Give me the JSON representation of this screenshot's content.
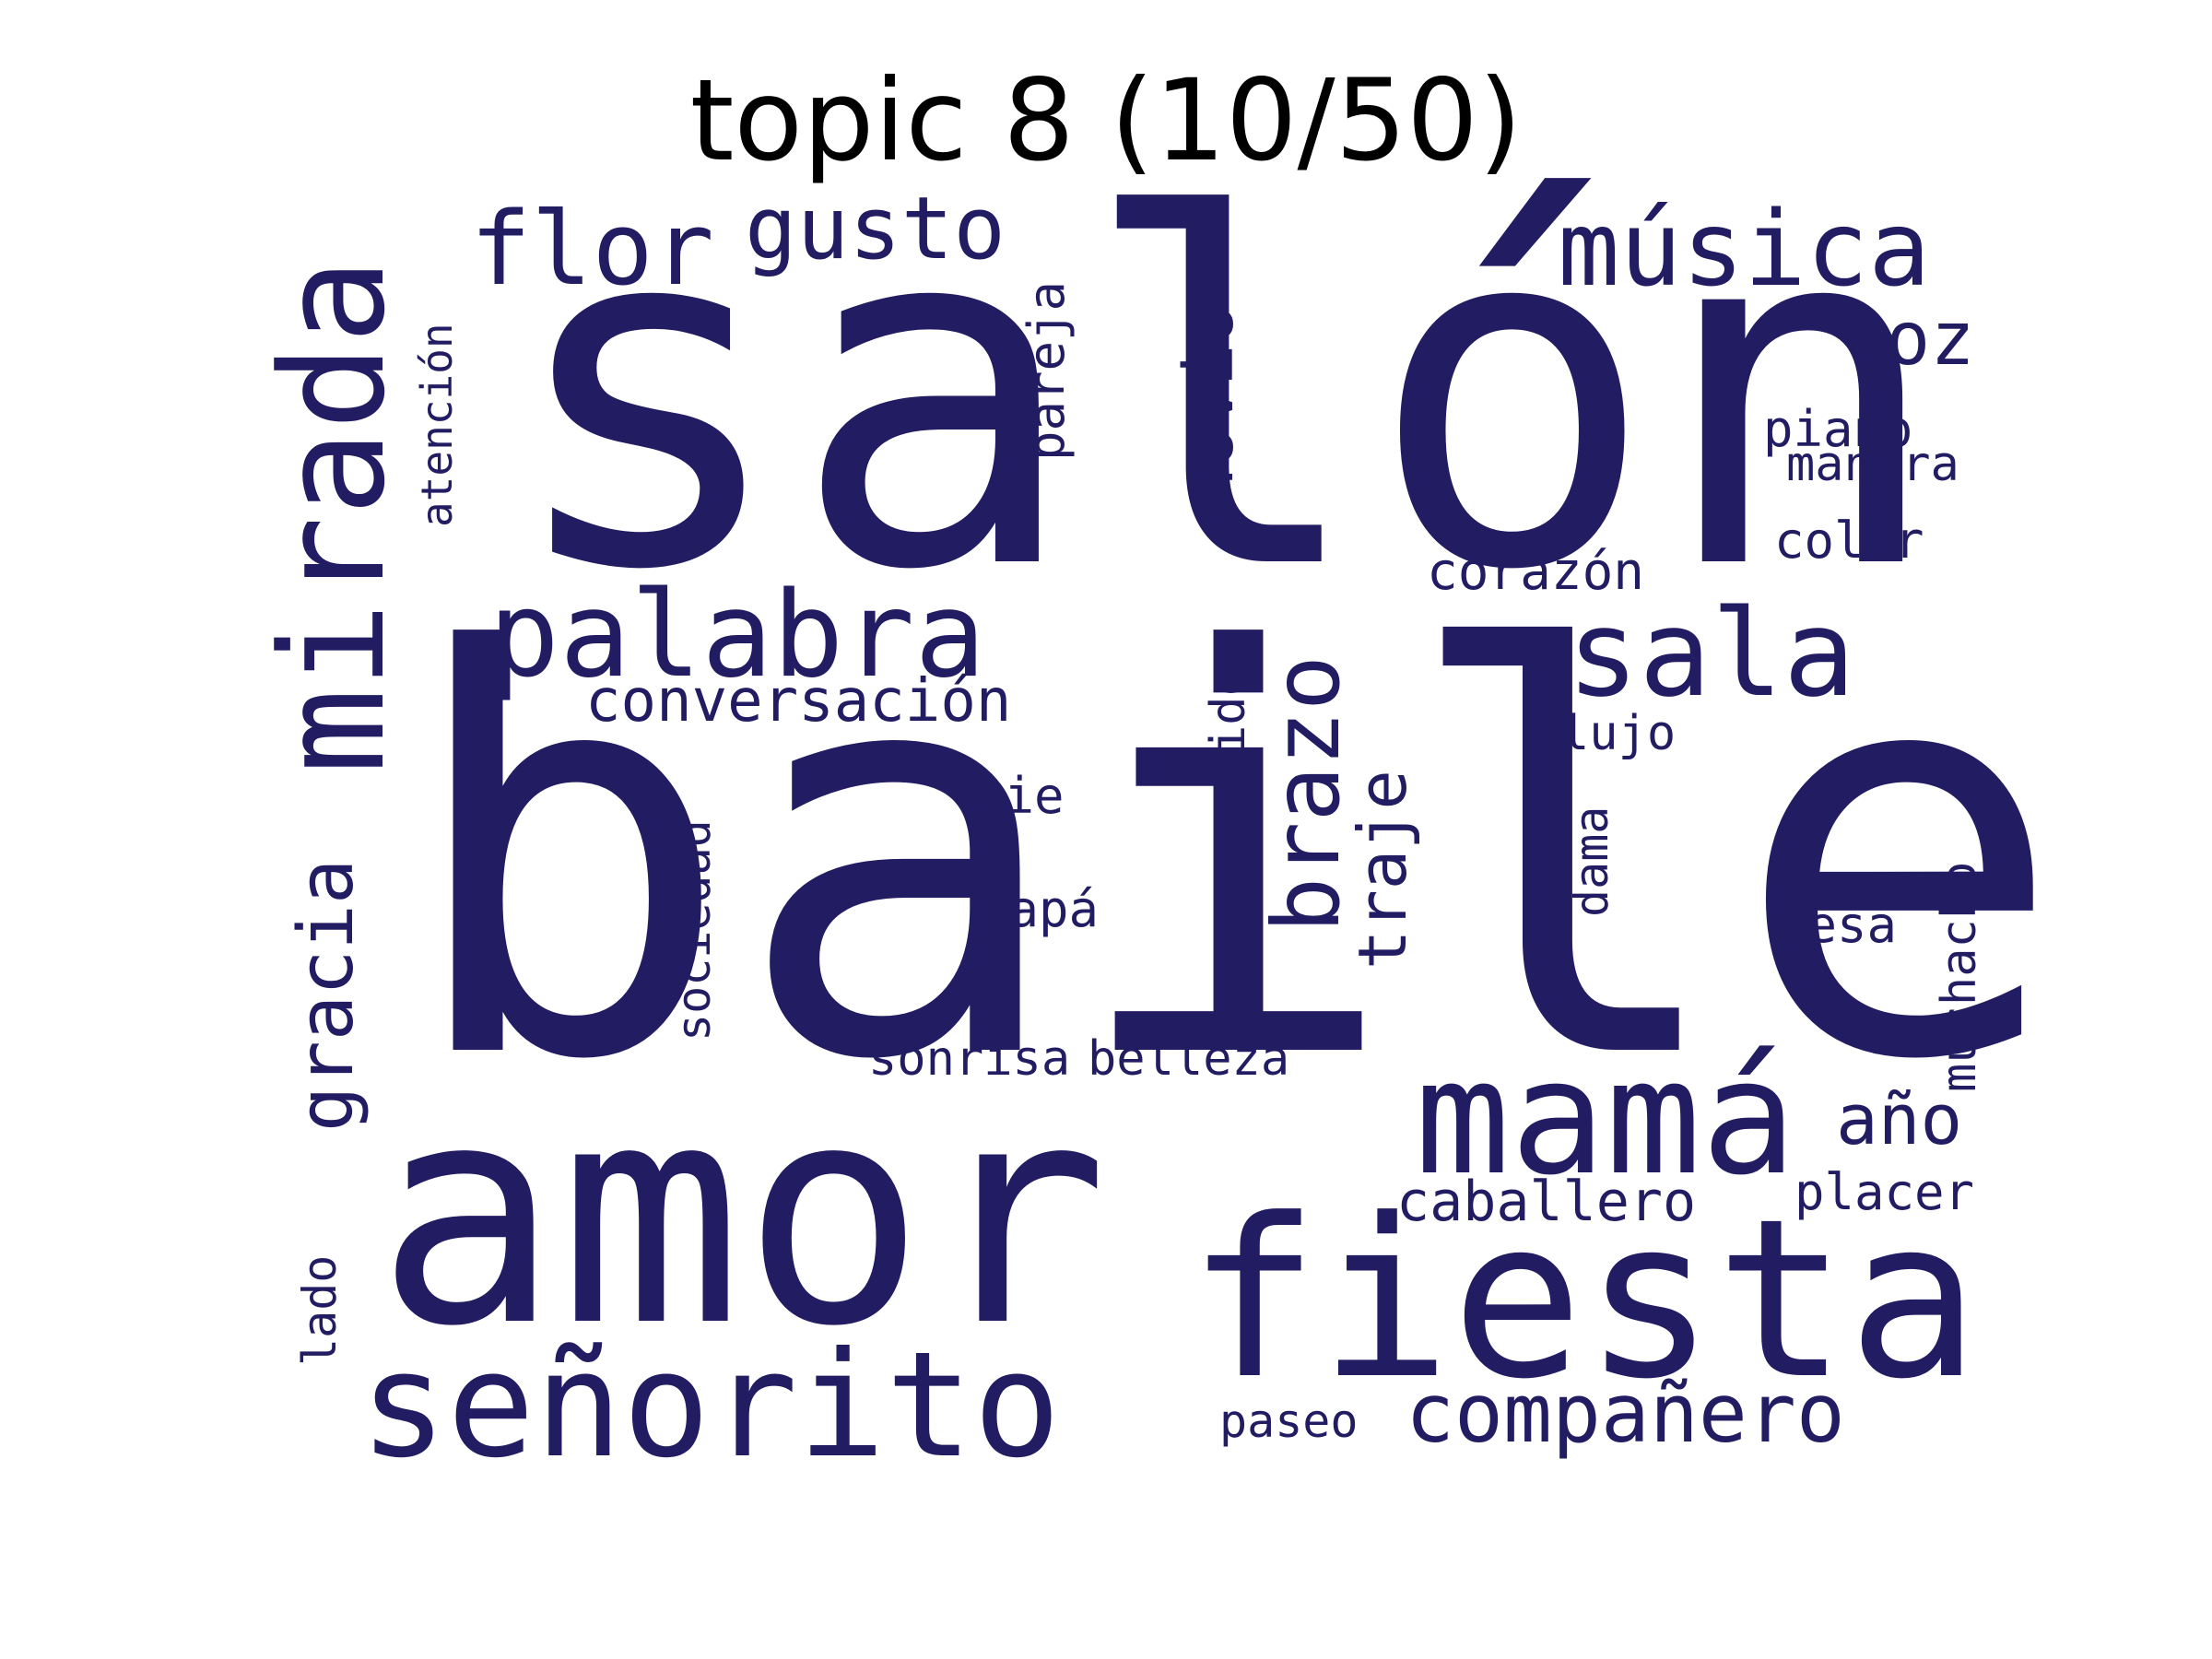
{
  "title": "topic 8 (10/50)",
  "colors": {
    "word": "#221c63",
    "title": "#000000",
    "background": "#ffffff"
  },
  "words": [
    {
      "text": "baile",
      "orientation": "horizontal"
    },
    {
      "text": "salón",
      "orientation": "horizontal"
    },
    {
      "text": "amor",
      "orientation": "horizontal"
    },
    {
      "text": "fiesta",
      "orientation": "horizontal"
    },
    {
      "text": "señorito",
      "orientation": "horizontal"
    },
    {
      "text": "mirada",
      "orientation": "vertical"
    },
    {
      "text": "mamá",
      "orientation": "horizontal"
    },
    {
      "text": "palabra",
      "orientation": "horizontal"
    },
    {
      "text": "sala",
      "orientation": "horizontal"
    },
    {
      "text": "música",
      "orientation": "horizontal"
    },
    {
      "text": "flor",
      "orientation": "horizontal"
    },
    {
      "text": "gusto",
      "orientation": "horizontal"
    },
    {
      "text": "brazo",
      "orientation": "vertical"
    },
    {
      "text": "compañero",
      "orientation": "horizontal"
    },
    {
      "text": "gracia",
      "orientation": "vertical"
    },
    {
      "text": "voz",
      "orientation": "horizontal"
    },
    {
      "text": "novio",
      "orientation": "vertical"
    },
    {
      "text": "traje",
      "orientation": "vertical"
    },
    {
      "text": "año",
      "orientation": "horizontal"
    },
    {
      "text": "conversación",
      "orientation": "horizontal"
    },
    {
      "text": "caballero",
      "orientation": "horizontal"
    },
    {
      "text": "corazón",
      "orientation": "horizontal"
    },
    {
      "text": "sonrisa",
      "orientation": "horizontal"
    },
    {
      "text": "belleza",
      "orientation": "horizontal"
    },
    {
      "text": "muchacho",
      "orientation": "vertical"
    },
    {
      "text": "placer",
      "orientation": "horizontal"
    },
    {
      "text": "piano",
      "orientation": "horizontal"
    },
    {
      "text": "manera",
      "orientation": "horizontal"
    },
    {
      "text": "color",
      "orientation": "horizontal"
    },
    {
      "text": "pareja",
      "orientation": "vertical"
    },
    {
      "text": "atención",
      "orientation": "vertical"
    },
    {
      "text": "sociedad",
      "orientation": "vertical"
    },
    {
      "text": "marido",
      "orientation": "vertical"
    },
    {
      "text": "mesa",
      "orientation": "horizontal"
    },
    {
      "text": "papá",
      "orientation": "horizontal"
    },
    {
      "text": "pie",
      "orientation": "horizontal"
    },
    {
      "text": "lujo",
      "orientation": "horizontal"
    },
    {
      "text": "dama",
      "orientation": "vertical"
    },
    {
      "text": "paseo",
      "orientation": "horizontal"
    },
    {
      "text": "lado",
      "orientation": "vertical"
    }
  ]
}
